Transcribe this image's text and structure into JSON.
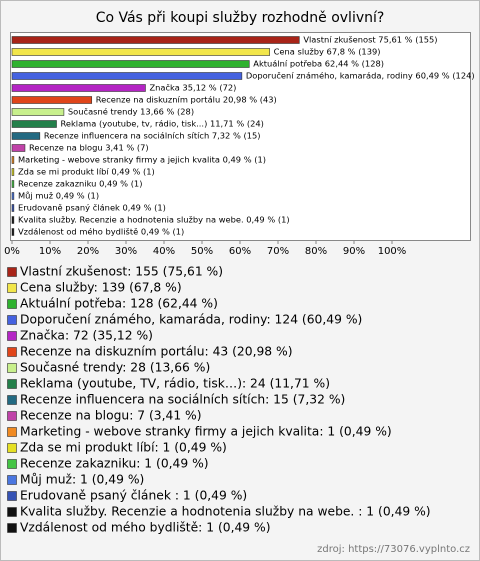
{
  "chart_data": {
    "type": "bar",
    "orientation": "horizontal",
    "title": "Co Vás při koupi služby rozhodně ovlivní?",
    "categories": [
      "Vlastní zkušenost",
      "Cena služby",
      "Aktuální potřeba",
      "Doporučení známého, kamaráda, rodiny",
      "Značka",
      "Recenze na diskuzním portálu",
      "Současné trendy",
      "Reklama (youtube, TV, rádio, tisk…)",
      "Recenze influencera na sociálních sítích",
      "Recenze na blogu",
      "Marketing - webove stranky firmy a jejich kvalita",
      "Zda se mi produkt líbí",
      "Recenze zakazniku",
      "Můj muž",
      "Erudovaně psaný článek",
      "Kvalita služby. Recenzie a hodnotenia služby na webe.",
      "Vzdálenost od mého bydliště"
    ],
    "values": [
      75.61,
      67.8,
      62.44,
      60.49,
      35.12,
      20.98,
      13.66,
      11.71,
      7.32,
      3.41,
      0.49,
      0.49,
      0.49,
      0.49,
      0.49,
      0.49,
      0.49
    ],
    "value_labels": [
      "Vlastní zkušenost 75,61 % (155)",
      "Cena služby 67,8 % (139)",
      "Aktuální potřeba 62,44 % (128)",
      "Doporučení známého, kamaráda, rodiny 60,49 % (124)",
      "Značka 35,12 % (72)",
      "Recenze na diskuzním portálu 20,98 % (43)",
      "Současné trendy 13,66 % (28)",
      "Reklama (youtube, tv, rádio, tisk...) 11,71 % (24)",
      "Recenze influencera na sociálních sítích 7,32 % (15)",
      "Recenze na blogu 3,41 % (7)",
      "Marketing - webove stranky firmy a jejich kvalita 0,49 % (1)",
      "Zda se mi produkt líbí 0,49 % (1)",
      "Recenze zakazniku 0,49 % (1)",
      "Můj muž 0,49 % (1)",
      "Erudovaně psaný článek 0,49 % (1)",
      "Kvalita služby. Recenzie a hodnotenia služby na webe.  0,49 % (1)",
      "Vzdálenost od mého bydliště 0,49 % (1)"
    ],
    "legend_labels": [
      "Vlastní zkušenost: 155 (75,61 %)",
      "Cena služby: 139 (67,8 %)",
      "Aktuální potřeba: 128 (62,44 %)",
      "Doporučení známého, kamaráda, rodiny: 124 (60,49 %)",
      "Značka: 72 (35,12 %)",
      "Recenze na diskuzním portálu: 43 (20,98 %)",
      "Současné trendy: 28 (13,66 %)",
      "Reklama (youtube, TV, rádio, tisk…): 24 (11,71 %)",
      "Recenze influencera na sociálních sítích: 15 (7,32 %)",
      "Recenze na blogu: 7 (3,41 %)",
      "Marketing - webove stranky firmy a jejich kvalita: 1 (0,49 %)",
      "Zda se mi produkt líbí: 1 (0,49 %)",
      "Recenze zakazniku: 1 (0,49 %)",
      "Můj muž: 1 (0,49 %)",
      "Erudovaně psaný článek : 1 (0,49 %)",
      "Kvalita služby. Recenzie a hodnotenia služby na webe. : 1 (0,49 %)",
      "Vzdálenost od mého bydliště: 1 (0,49 %)"
    ],
    "colors": [
      "#a82418",
      "#f2e64a",
      "#2fb22f",
      "#4562e0",
      "#b425c4",
      "#e0451a",
      "#c8f08c",
      "#23804a",
      "#236a82",
      "#c042a8",
      "#f08a22",
      "#e6e024",
      "#44c444",
      "#4a76e0",
      "#3552b4",
      "#111111",
      "#111111"
    ],
    "xlim": [
      0,
      100
    ],
    "xticks": [
      {
        "value": 0,
        "label": "0%"
      },
      {
        "value": 10,
        "label": "10%"
      },
      {
        "value": 20,
        "label": "20%"
      },
      {
        "value": 30,
        "label": "30%"
      },
      {
        "value": 40,
        "label": "40%"
      },
      {
        "value": 50,
        "label": "50%"
      },
      {
        "value": 60,
        "label": "60%"
      },
      {
        "value": 70,
        "label": "70%"
      },
      {
        "value": 80,
        "label": "80%"
      },
      {
        "value": 90,
        "label": "90%"
      },
      {
        "value": 100,
        "label": "100%"
      }
    ],
    "source": "zdroj: https://73076.vyplnto.cz"
  }
}
